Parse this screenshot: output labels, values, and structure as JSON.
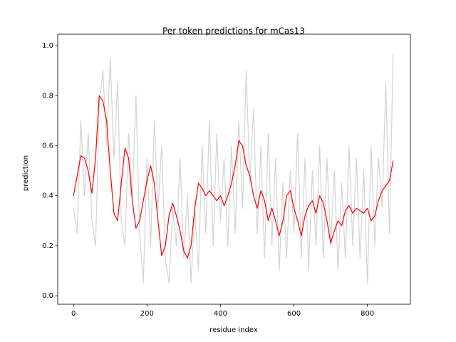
{
  "chart_data": {
    "type": "line",
    "title": "Per token predictions for mCas13",
    "x_label": "residue index",
    "y_label": "prediction",
    "x": [
      0,
      10,
      20,
      30,
      40,
      50,
      60,
      70,
      80,
      90,
      100,
      110,
      120,
      130,
      140,
      150,
      160,
      170,
      180,
      190,
      200,
      210,
      220,
      230,
      240,
      250,
      260,
      270,
      280,
      290,
      300,
      310,
      320,
      330,
      340,
      350,
      360,
      370,
      380,
      390,
      400,
      410,
      420,
      430,
      440,
      450,
      460,
      470,
      480,
      490,
      500,
      510,
      520,
      530,
      540,
      550,
      560,
      570,
      580,
      590,
      600,
      610,
      620,
      630,
      640,
      650,
      660,
      670,
      680,
      690,
      700,
      710,
      720,
      730,
      740,
      750,
      760,
      770,
      780,
      790,
      800,
      810,
      820,
      830,
      840,
      850,
      860,
      870
    ],
    "series": [
      {
        "color": "#d3d3d3",
        "values": [
          0.35,
          0.25,
          0.7,
          0.4,
          0.65,
          0.3,
          0.2,
          0.75,
          0.9,
          0.6,
          0.95,
          0.55,
          0.85,
          0.3,
          0.2,
          0.65,
          0.4,
          0.8,
          0.25,
          0.05,
          0.55,
          0.2,
          0.7,
          0.35,
          0.6,
          0.15,
          0.05,
          0.35,
          0.2,
          0.55,
          0.15,
          0.4,
          0.05,
          0.35,
          0.1,
          0.6,
          0.25,
          0.7,
          0.2,
          0.65,
          0.3,
          0.55,
          0.2,
          0.6,
          0.25,
          0.7,
          0.35,
          0.9,
          0.45,
          0.75,
          0.25,
          0.6,
          0.15,
          0.65,
          0.2,
          0.55,
          0.1,
          0.45,
          0.15,
          0.5,
          0.25,
          0.65,
          0.15,
          0.55,
          0.1,
          0.5,
          0.2,
          0.6,
          0.15,
          0.55,
          0.2,
          0.5,
          0.1,
          0.45,
          0.15,
          0.6,
          0.2,
          0.55,
          0.15,
          0.5,
          0.05,
          0.6,
          0.2,
          0.55,
          0.35,
          0.85,
          0.25,
          0.97
        ]
      },
      {
        "color": "#ff0000",
        "values": [
          0.4,
          0.48,
          0.56,
          0.55,
          0.5,
          0.41,
          0.55,
          0.8,
          0.78,
          0.7,
          0.5,
          0.33,
          0.3,
          0.45,
          0.59,
          0.55,
          0.38,
          0.27,
          0.3,
          0.38,
          0.46,
          0.52,
          0.45,
          0.3,
          0.16,
          0.2,
          0.32,
          0.37,
          0.32,
          0.26,
          0.18,
          0.15,
          0.2,
          0.35,
          0.45,
          0.43,
          0.4,
          0.42,
          0.4,
          0.38,
          0.4,
          0.36,
          0.4,
          0.45,
          0.52,
          0.62,
          0.6,
          0.52,
          0.48,
          0.4,
          0.35,
          0.42,
          0.38,
          0.3,
          0.35,
          0.3,
          0.24,
          0.3,
          0.4,
          0.42,
          0.35,
          0.3,
          0.24,
          0.32,
          0.36,
          0.38,
          0.33,
          0.4,
          0.37,
          0.3,
          0.21,
          0.26,
          0.3,
          0.28,
          0.34,
          0.36,
          0.33,
          0.35,
          0.34,
          0.33,
          0.35,
          0.3,
          0.32,
          0.38,
          0.42,
          0.44,
          0.46,
          0.54
        ]
      }
    ],
    "xlim": [
      -43,
      917
    ],
    "ylim": [
      -0.034,
      1.046
    ],
    "xticks": [
      0,
      200,
      400,
      600,
      800
    ],
    "yticks": [
      {
        "value": 0,
        "label": "0.0"
      },
      0.2,
      0.4,
      0.6,
      0.8,
      {
        "value": 1,
        "label": "1.0"
      }
    ]
  }
}
